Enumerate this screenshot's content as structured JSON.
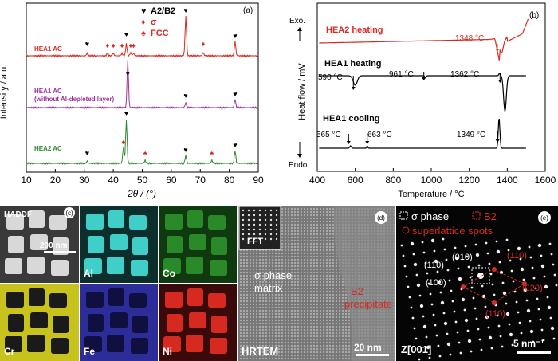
{
  "panel_a": {
    "letter": "(a)",
    "ylabel": "Intensity / a.u.",
    "xlabel": "2θ / (°)",
    "legend": [
      {
        "symbol": "♥",
        "label": "A2/B2",
        "color": "#000000"
      },
      {
        "symbol": "♦",
        "label": "σ",
        "color": "#d62a20"
      },
      {
        "symbol": "♠",
        "label": "FCC",
        "color": "#d62a20"
      }
    ],
    "traces": [
      {
        "label": "HEA1 AC",
        "color": "#d62a20"
      },
      {
        "label": "HEA1 AC",
        "sublabel": "(without Al-depleted layer)",
        "color": "#a030a0"
      },
      {
        "label": "HEA2 AC",
        "color": "#2e8b2e"
      }
    ]
  },
  "panel_b": {
    "letter": "(b)",
    "ylabel": "Heat flow / mV",
    "xlabel": "Temperature / °C",
    "exo": "Exo.",
    "endo": "Endo.",
    "traces": [
      {
        "label": "HEA2 heating",
        "color": "#d62a20"
      },
      {
        "label": "HEA1 heating",
        "color": "#000000"
      },
      {
        "label": "HEA1 cooling",
        "color": "#000000"
      }
    ],
    "annotations": [
      "1348 °C",
      "590 °C",
      "961 °C",
      "1362 °C",
      "565 °C",
      "663 °C",
      "1349 °C"
    ]
  },
  "panel_c": {
    "letter": "(c)",
    "tiles": [
      "HADDF",
      "Al",
      "Co",
      "Cr",
      "Fe",
      "Ni"
    ],
    "scale": "200 nm"
  },
  "panel_d": {
    "letter": "(d)",
    "fft": "FFT",
    "matrix_label": "σ phase\nmatrix",
    "matrix_line1": "σ phase",
    "matrix_line2": "matrix",
    "precip_line1": "B2",
    "precip_line2": "precipitate",
    "mode": "HRTEM",
    "scale": "20 nm"
  },
  "panel_e": {
    "letter": "(e)",
    "legend_sigma": "σ phase",
    "legend_b2": "B2",
    "legend_super": "superlattice spots",
    "idx_110w": "(110)",
    "idx_010": "(010)",
    "idx_100": "(100)",
    "idx_110r": "(110)",
    "idx_020": "(020)",
    "idx_110b": "(110)",
    "zone": "Z[001]",
    "scale": "5 nm⁻¹"
  },
  "chart_data": [
    {
      "type": "line",
      "title": "",
      "xlabel": "2θ / (°)",
      "ylabel": "Intensity / a.u.",
      "xlim": [
        10,
        90
      ],
      "xticks": [
        10,
        20,
        30,
        40,
        50,
        60,
        70,
        80,
        90
      ],
      "series": [
        {
          "name": "HEA1 AC",
          "peaks_x": [
            31,
            38,
            40,
            43,
            44.5,
            46,
            47,
            65,
            71,
            82
          ]
        },
        {
          "name": "HEA1 AC (without Al-depleted layer)",
          "peaks_x": [
            45,
            65,
            82
          ]
        },
        {
          "name": "HEA2 AC",
          "peaks_x": [
            31,
            43.5,
            44.5,
            51,
            65,
            74,
            82
          ]
        }
      ]
    },
    {
      "type": "line",
      "title": "",
      "xlabel": "Temperature / °C",
      "ylabel": "Heat flow / mV",
      "xlim": [
        400,
        1600
      ],
      "xticks": [
        400,
        600,
        800,
        1000,
        1200,
        1400,
        1600
      ],
      "series": [
        {
          "name": "HEA2 heating",
          "events_c": [
            1348
          ]
        },
        {
          "name": "HEA1 heating",
          "events_c": [
            590,
            961,
            1362
          ]
        },
        {
          "name": "HEA1 cooling",
          "events_c": [
            565,
            663,
            1349
          ]
        }
      ]
    }
  ]
}
